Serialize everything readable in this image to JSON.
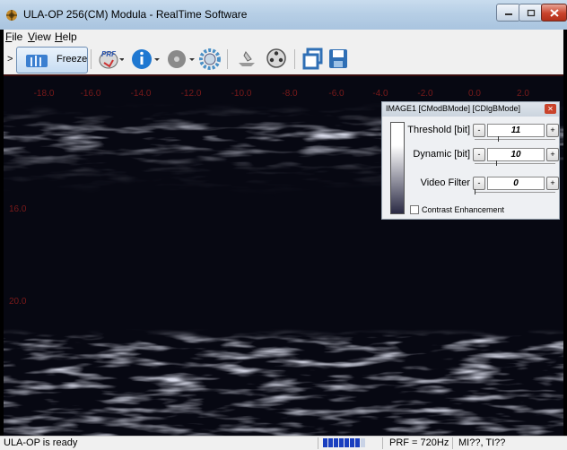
{
  "window": {
    "title": "ULA-OP 256(CM) Modula - RealTime Software"
  },
  "menu": {
    "items": [
      {
        "label": "File",
        "mnemonic": "F",
        "rest": "ile"
      },
      {
        "label": "View",
        "mnemonic": "V",
        "rest": "iew"
      },
      {
        "label": "Help",
        "mnemonic": "H",
        "rest": "elp"
      }
    ]
  },
  "toolbar": {
    "chevron": ">",
    "freeze_label": "Freeze",
    "icons": [
      "freeze-icon",
      "prf-icon",
      "info-icon",
      "disc-icon",
      "settings-icon",
      "probe-icon",
      "film-reel-icon",
      "copy-windows-icon",
      "save-icon"
    ]
  },
  "axes": {
    "x_ticks": [
      "-18.0",
      "-16.0",
      "-14.0",
      "-12.0",
      "-10.0",
      "-8.0",
      "-6.0",
      "-4.0",
      "-2.0",
      "0.0",
      "2.0"
    ],
    "y_ticks": [
      "16.0",
      "20.0"
    ]
  },
  "panel": {
    "title": "IMAGE1 [CModBMode] [CDlgBMode]",
    "rows": [
      {
        "label": "Threshold [bit]",
        "value": "11",
        "level": 0.3
      },
      {
        "label": "Dynamic [bit]",
        "value": "10",
        "level": 0.27
      },
      {
        "label": "Video Filter",
        "value": "0",
        "level": 0.0
      }
    ],
    "contrast_label": "Contrast Enhancement",
    "contrast_checked": false
  },
  "status": {
    "text": "ULA-OP is ready",
    "progress_filled": 7,
    "progress_total": 8,
    "prf": "PRF = 720Hz",
    "mi": "MI??, TI??"
  },
  "colors": {
    "tick_label": "#7a1a1a",
    "progress_fill": "#1a3fbf",
    "close_button": "#c9432b"
  }
}
